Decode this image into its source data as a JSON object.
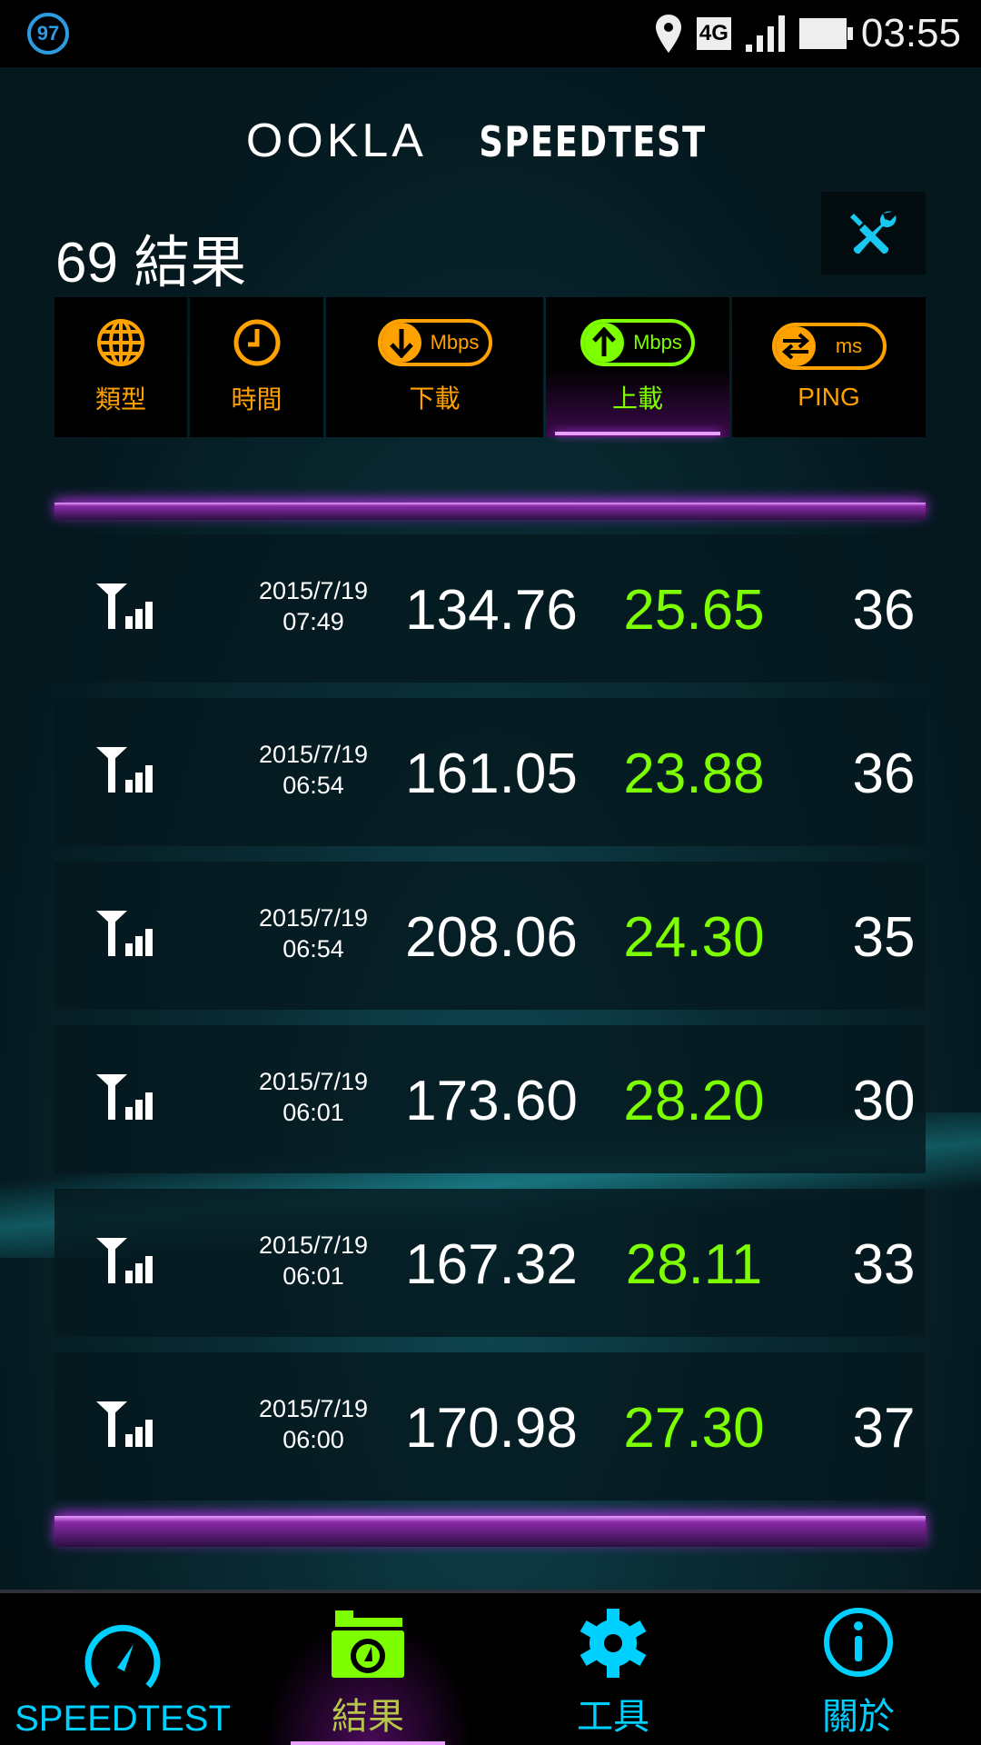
{
  "status_bar": {
    "battery_badge": "97",
    "network": "4G",
    "time": "03:55"
  },
  "header": {
    "logo_left": "OOKLA",
    "logo_right": "SPEEDTEST",
    "results_count": "69 結果"
  },
  "colors": {
    "accent_orange": "#ffa200",
    "accent_green": "#7dff00",
    "accent_cyan": "#00d0ff",
    "accent_purple": "#c040ff"
  },
  "tabs": [
    {
      "label": "類型",
      "icon": "globe-icon"
    },
    {
      "label": "時間",
      "icon": "clock-icon"
    },
    {
      "label": "下載",
      "unit": "Mbps",
      "icon": "download-arrow-icon"
    },
    {
      "label": "上載",
      "unit": "Mbps",
      "icon": "upload-arrow-icon",
      "active": true
    },
    {
      "label": "PING",
      "unit": "ms",
      "icon": "ping-arrows-icon"
    }
  ],
  "results": [
    {
      "date": "2015/7/19",
      "time": "07:49",
      "download": "134.76",
      "upload": "25.65",
      "ping": "36"
    },
    {
      "date": "2015/7/19",
      "time": "06:54",
      "download": "161.05",
      "upload": "23.88",
      "ping": "36"
    },
    {
      "date": "2015/7/19",
      "time": "06:54",
      "download": "208.06",
      "upload": "24.30",
      "ping": "35"
    },
    {
      "date": "2015/7/19",
      "time": "06:01",
      "download": "173.60",
      "upload": "28.20",
      "ping": "30"
    },
    {
      "date": "2015/7/19",
      "time": "06:01",
      "download": "167.32",
      "upload": "28.11",
      "ping": "33"
    },
    {
      "date": "2015/7/19",
      "time": "06:00",
      "download": "170.98",
      "upload": "27.30",
      "ping": "37"
    }
  ],
  "nav": [
    {
      "label": "SPEEDTEST",
      "icon": "speedometer-icon"
    },
    {
      "label": "結果",
      "icon": "results-folder-icon",
      "active": true
    },
    {
      "label": "工具",
      "icon": "gear-icon"
    },
    {
      "label": "關於",
      "icon": "info-icon"
    }
  ]
}
